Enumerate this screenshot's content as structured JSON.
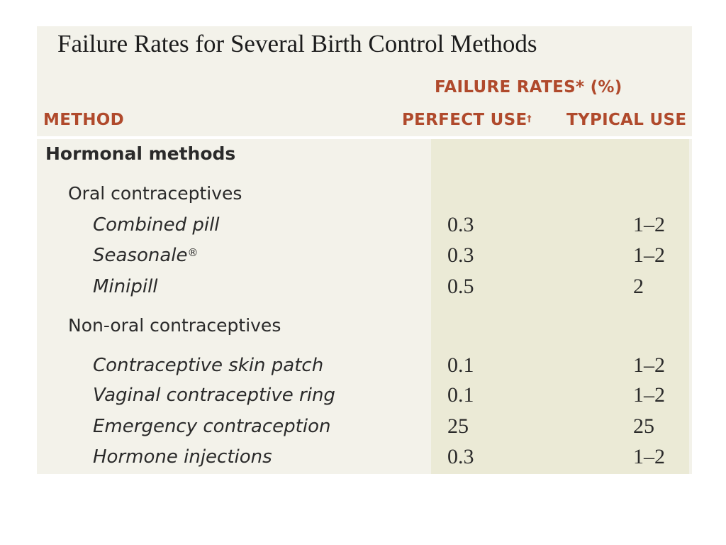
{
  "title": "Failure Rates for Several Birth Control Methods",
  "header": {
    "group_label": "FAILURE RATES* (%)",
    "method_label": "METHOD",
    "perfect_use_label": "PERFECT USE",
    "perfect_use_mark": "†",
    "typical_use_label": "TYPICAL USE"
  },
  "rows": [
    {
      "type": "group",
      "label": "Hormonal methods"
    },
    {
      "type": "sub",
      "label": "Oral contraceptives"
    },
    {
      "type": "item",
      "label": "Combined pill",
      "perfect": "0.3",
      "typical": "1–2"
    },
    {
      "type": "item",
      "label": "Seasonale",
      "mark": "®",
      "perfect": "0.3",
      "typical": "1–2"
    },
    {
      "type": "item",
      "label": "Minipill",
      "perfect": "0.5",
      "typical": "2"
    },
    {
      "type": "sub",
      "label": "Non-oral contraceptives"
    },
    {
      "type": "item",
      "label": "Contraceptive skin patch",
      "perfect": "0.1",
      "typical": "1–2"
    },
    {
      "type": "item",
      "label": "Vaginal contraceptive ring",
      "perfect": "0.1",
      "typical": "1–2"
    },
    {
      "type": "item",
      "label": "Emergency contraception",
      "perfect": "25",
      "typical": "25"
    },
    {
      "type": "item",
      "label": "Hormone injections",
      "perfect": "0.3",
      "typical": "1–2"
    }
  ],
  "colors": {
    "header_text": "#b04a2c",
    "panel_background": "#f3f2ea",
    "values_band_background": "#ebead6",
    "body_text": "#2a2a2a"
  }
}
